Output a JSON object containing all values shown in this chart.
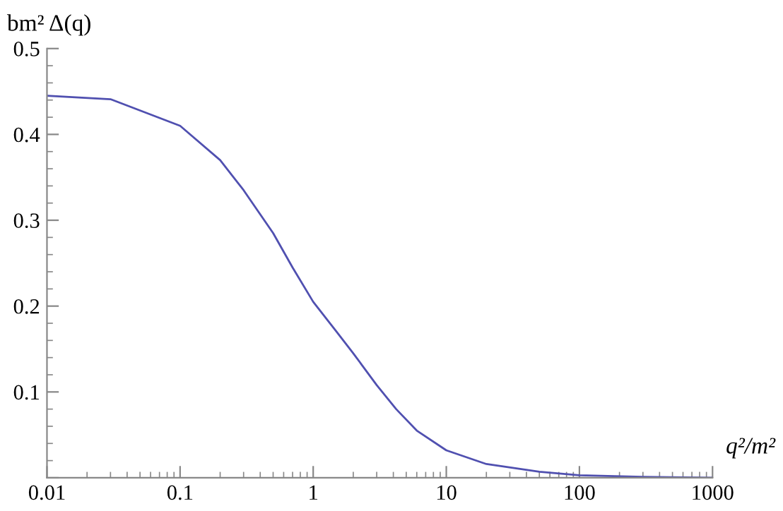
{
  "chart_data": {
    "type": "line",
    "ylabel": "bm² Δ(q)",
    "xlabel": "q²/m²",
    "log": "x",
    "xlim": [
      0.01,
      1000
    ],
    "ylim": [
      0,
      0.5
    ],
    "xticks": [
      0.01,
      0.1,
      1,
      10,
      100,
      1000
    ],
    "yticks": [
      {
        "value": 0,
        "label": null
      },
      0.1,
      0.2,
      0.3,
      0.4,
      0.5
    ],
    "grid": false,
    "marker": "none",
    "line_style": "solid",
    "series": [
      {
        "color": "#5050b0",
        "x": [
          0.01,
          0.03,
          0.1,
          0.2,
          0.3,
          0.5,
          0.7,
          1,
          1.5,
          2,
          3,
          4.2,
          6,
          10,
          20,
          50,
          100,
          300,
          1000
        ],
        "values": [
          0.445,
          0.441,
          0.41,
          0.37,
          0.335,
          0.285,
          0.245,
          0.205,
          0.17,
          0.145,
          0.108,
          0.08,
          0.055,
          0.032,
          0.016,
          0.007,
          0.003,
          0.001,
          0
        ]
      }
    ]
  }
}
